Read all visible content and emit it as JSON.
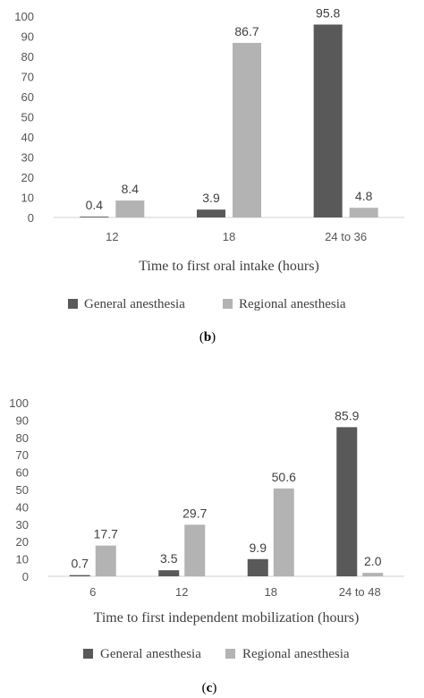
{
  "colors": {
    "general": "#595959",
    "regional": "#b3b3b3",
    "axis": "#d0d0d0"
  },
  "chart_data": [
    {
      "type": "bar",
      "caption_prefix": "(",
      "caption_letter": "b",
      "caption_suffix": ")",
      "title": "",
      "xlabel": "Time to first oral intake (hours)",
      "ylabel": "",
      "ylim": [
        0,
        100
      ],
      "yticks": [
        0,
        10,
        20,
        30,
        40,
        50,
        60,
        70,
        80,
        90,
        100
      ],
      "grid": false,
      "legend_position": "bottom",
      "categories": [
        "12",
        "18",
        "24 to 36"
      ],
      "series": [
        {
          "name": "General anesthesia",
          "values": [
            0.4,
            3.9,
            95.8
          ],
          "labels": [
            "0.4",
            "3.9",
            "95.8"
          ]
        },
        {
          "name": "Regional anesthesia",
          "values": [
            8.4,
            86.7,
            4.8
          ],
          "labels": [
            "8.4",
            "86.7",
            "4.8"
          ]
        }
      ]
    },
    {
      "type": "bar",
      "caption_prefix": "(",
      "caption_letter": "c",
      "caption_suffix": ")",
      "title": "",
      "xlabel": "Time to first independent mobilization (hours)",
      "ylabel": "",
      "ylim": [
        0,
        100
      ],
      "yticks": [
        0,
        10,
        20,
        30,
        40,
        50,
        60,
        70,
        80,
        90,
        100
      ],
      "grid": false,
      "legend_position": "bottom",
      "categories": [
        "6",
        "12",
        "18",
        "24 to 48"
      ],
      "series": [
        {
          "name": "General anesthesia",
          "values": [
            0.7,
            3.5,
            9.9,
            85.9
          ],
          "labels": [
            "0.7",
            "3.5",
            "9.9",
            "85.9"
          ]
        },
        {
          "name": "Regional anesthesia",
          "values": [
            17.7,
            29.7,
            50.6,
            2.0
          ],
          "labels": [
            "17.7",
            "29.7",
            "50.6",
            "2.0"
          ]
        }
      ]
    }
  ]
}
